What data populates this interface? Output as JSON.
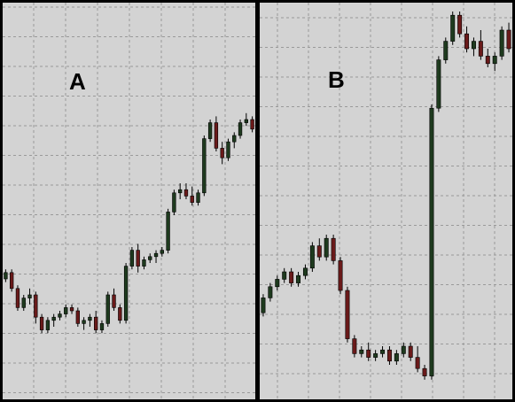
{
  "colors": {
    "background": "#d3d3d3",
    "grid": "#9a9a9a",
    "bull": "#1e3a1e",
    "bear": "#6a1a1a",
    "wick": "#000000",
    "frame": "#000000"
  },
  "chart_data": [
    {
      "type": "candlestick",
      "label": "A",
      "grid": true,
      "grid_style": "dashed",
      "ylim": [
        0,
        100
      ],
      "series": [
        {
          "values": [
            [
              30,
              33,
              29,
              32
            ],
            [
              32,
              33,
              26,
              27
            ],
            [
              27,
              28,
              20,
              21
            ],
            [
              21,
              25,
              20,
              24
            ],
            [
              24,
              27,
              22,
              25
            ],
            [
              25,
              26,
              16,
              18
            ],
            [
              18,
              19,
              13,
              14
            ],
            [
              14,
              18,
              13,
              17
            ],
            [
              17,
              19,
              15,
              18
            ],
            [
              18,
              20,
              17,
              19
            ],
            [
              19,
              22,
              18,
              21
            ],
            [
              21,
              22,
              19,
              20
            ],
            [
              20,
              21,
              15,
              16
            ],
            [
              16,
              18,
              14,
              17
            ],
            [
              17,
              19,
              15,
              18
            ],
            [
              18,
              20,
              13,
              14
            ],
            [
              14,
              17,
              13,
              16
            ],
            [
              16,
              26,
              15,
              25
            ],
            [
              25,
              27,
              20,
              21
            ],
            [
              21,
              22,
              16,
              17
            ],
            [
              17,
              35,
              16,
              34
            ],
            [
              34,
              40,
              33,
              39
            ],
            [
              39,
              41,
              32,
              34
            ],
            [
              34,
              37,
              33,
              36
            ],
            [
              36,
              38,
              35,
              37
            ],
            [
              37,
              39,
              35,
              38
            ],
            [
              38,
              40,
              37,
              39
            ],
            [
              39,
              52,
              38,
              51
            ],
            [
              51,
              58,
              50,
              57
            ],
            [
              57,
              60,
              55,
              58
            ],
            [
              58,
              60,
              55,
              56
            ],
            [
              56,
              59,
              53,
              54
            ],
            [
              54,
              58,
              53,
              57
            ],
            [
              57,
              75,
              56,
              74
            ],
            [
              74,
              80,
              73,
              79
            ],
            [
              79,
              81,
              70,
              71
            ],
            [
              71,
              73,
              66,
              68
            ],
            [
              68,
              74,
              67,
              73
            ],
            [
              73,
              76,
              71,
              75
            ],
            [
              75,
              80,
              74,
              79
            ],
            [
              79,
              82,
              78,
              80
            ],
            [
              80,
              81,
              76,
              77
            ]
          ]
        }
      ]
    },
    {
      "type": "candlestick",
      "label": "B",
      "grid": true,
      "grid_style": "dashed",
      "ylim": [
        0,
        100
      ],
      "series": [
        {
          "values": [
            [
              19,
              24,
              18,
              23
            ],
            [
              23,
              27,
              22,
              26
            ],
            [
              26,
              29,
              25,
              28
            ],
            [
              28,
              31,
              27,
              30
            ],
            [
              30,
              31,
              26,
              27
            ],
            [
              27,
              30,
              26,
              29
            ],
            [
              29,
              32,
              28,
              31
            ],
            [
              31,
              38,
              30,
              37
            ],
            [
              37,
              39,
              33,
              34
            ],
            [
              34,
              40,
              33,
              39
            ],
            [
              39,
              40,
              32,
              33
            ],
            [
              33,
              34,
              24,
              25
            ],
            [
              25,
              26,
              11,
              12
            ],
            [
              12,
              13,
              7,
              8
            ],
            [
              8,
              10,
              7,
              9
            ],
            [
              9,
              11,
              6,
              7
            ],
            [
              7,
              9,
              6,
              8
            ],
            [
              8,
              10,
              7,
              9
            ],
            [
              9,
              10,
              5,
              6
            ],
            [
              6,
              9,
              5,
              8
            ],
            [
              8,
              11,
              7,
              10
            ],
            [
              10,
              11,
              6,
              7
            ],
            [
              7,
              10,
              3,
              4
            ],
            [
              4,
              5,
              1,
              2
            ],
            [
              2,
              75,
              1,
              74
            ],
            [
              74,
              88,
              73,
              87
            ],
            [
              87,
              93,
              86,
              92
            ],
            [
              92,
              100,
              91,
              99
            ],
            [
              99,
              100,
              93,
              94
            ],
            [
              94,
              96,
              89,
              90
            ],
            [
              90,
              93,
              88,
              92
            ],
            [
              92,
              95,
              87,
              88
            ],
            [
              88,
              90,
              85,
              86
            ],
            [
              86,
              89,
              84,
              88
            ],
            [
              88,
              96,
              87,
              95
            ],
            [
              95,
              97,
              89,
              90
            ]
          ]
        }
      ]
    }
  ]
}
